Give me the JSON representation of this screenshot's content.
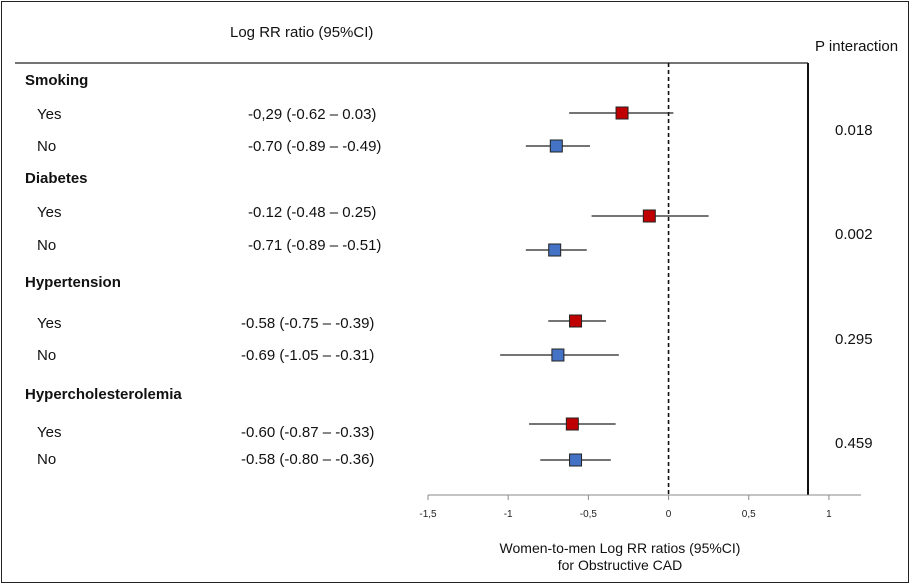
{
  "header": {
    "estimate_col": "Log RR ratio (95%CI)",
    "p_col": "P interaction"
  },
  "groups": [
    {
      "name": "Smoking",
      "p_interaction": "0.018",
      "rows": [
        {
          "label": "Yes",
          "text": "-0,29 (-0.62 – 0.03)"
        },
        {
          "label": "No",
          "text": "-0.70 (-0.89 – -0.49)"
        }
      ]
    },
    {
      "name": "Diabetes",
      "p_interaction": "0.002",
      "rows": [
        {
          "label": "Yes",
          "text": "-0.12 (-0.48 – 0.25)"
        },
        {
          "label": "No",
          "text": "-0.71 (-0.89 – -0.51)"
        }
      ]
    },
    {
      "name": "Hypertension",
      "p_interaction": "0.295",
      "rows": [
        {
          "label": "Yes",
          "text": "-0.58 (-0.75 – -0.39)"
        },
        {
          "label": "No",
          "text": "-0.69 (-1.05 – -0.31)"
        }
      ]
    },
    {
      "name": "Hypercholesterolemia",
      "p_interaction": "0.459",
      "rows": [
        {
          "label": "Yes",
          "text": "-0.60 (-0.87 – -0.33)"
        },
        {
          "label": "No",
          "text": "-0.58 (-0.80 – -0.36)"
        }
      ]
    }
  ],
  "chart_data": {
    "type": "forest",
    "xlabel": [
      "Women-to-men Log RR ratios  (95%CI)",
      "for Obstructive CAD"
    ],
    "xlim": [
      -1.5,
      1.2
    ],
    "ticks": [
      {
        "value": -1.5,
        "label": "-1,5"
      },
      {
        "value": -1.0,
        "label": "-1"
      },
      {
        "value": -0.5,
        "label": "-0,5"
      },
      {
        "value": 0.0,
        "label": "0"
      },
      {
        "value": 0.5,
        "label": "0,5"
      },
      {
        "value": 1.0,
        "label": "1"
      }
    ],
    "reference_line": 0,
    "colors": {
      "yes": "#c00000",
      "no": "#4472c4"
    },
    "series": [
      {
        "group": "Smoking",
        "level": "Yes",
        "estimate": -0.29,
        "lower": -0.62,
        "upper": 0.03
      },
      {
        "group": "Smoking",
        "level": "No",
        "estimate": -0.7,
        "lower": -0.89,
        "upper": -0.49
      },
      {
        "group": "Diabetes",
        "level": "Yes",
        "estimate": -0.12,
        "lower": -0.48,
        "upper": 0.25
      },
      {
        "group": "Diabetes",
        "level": "No",
        "estimate": -0.71,
        "lower": -0.89,
        "upper": -0.51
      },
      {
        "group": "Hypertension",
        "level": "Yes",
        "estimate": -0.58,
        "lower": -0.75,
        "upper": -0.39
      },
      {
        "group": "Hypertension",
        "level": "No",
        "estimate": -0.69,
        "lower": -1.05,
        "upper": -0.31
      },
      {
        "group": "Hypercholesterolemia",
        "level": "Yes",
        "estimate": -0.6,
        "lower": -0.87,
        "upper": -0.33
      },
      {
        "group": "Hypercholesterolemia",
        "level": "No",
        "estimate": -0.58,
        "lower": -0.8,
        "upper": -0.36
      }
    ]
  }
}
